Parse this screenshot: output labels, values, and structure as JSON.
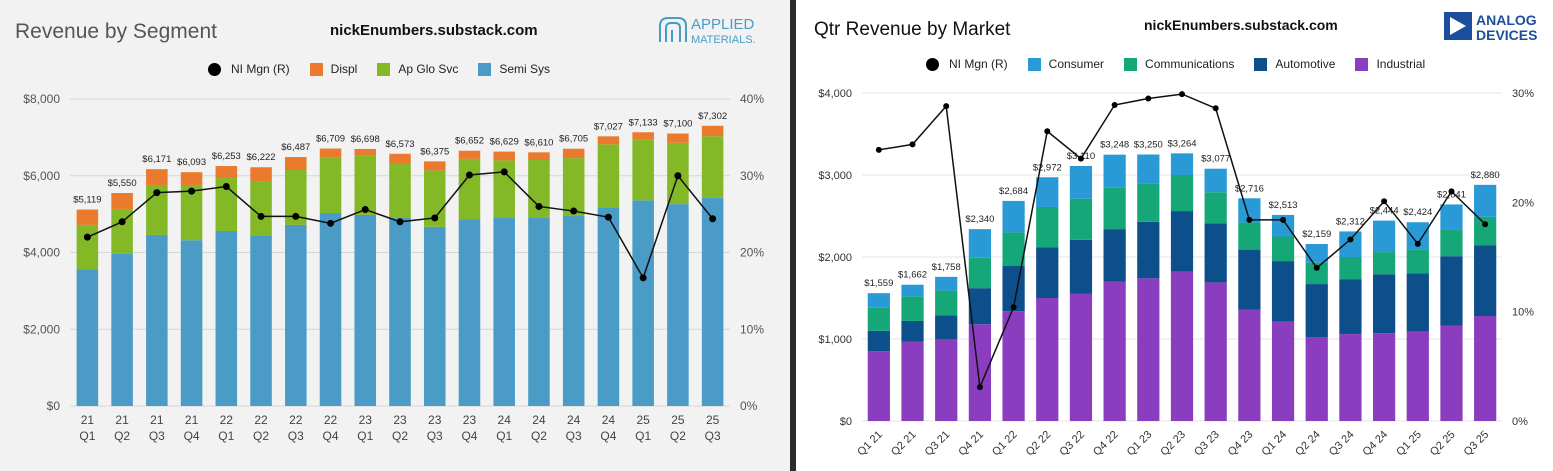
{
  "chart_data": [
    {
      "type": "bar",
      "stacked": true,
      "title": "Revenue by Segment",
      "watermark": "nickEnumbers.substack.com",
      "logo_text": [
        "APPLIED",
        "MATERIALS."
      ],
      "legend_placement": "top",
      "categories": [
        [
          "21",
          "Q1"
        ],
        [
          "21",
          "Q2"
        ],
        [
          "21",
          "Q3"
        ],
        [
          "21",
          "Q4"
        ],
        [
          "22",
          "Q1"
        ],
        [
          "22",
          "Q2"
        ],
        [
          "22",
          "Q3"
        ],
        [
          "22",
          "Q4"
        ],
        [
          "23",
          "Q1"
        ],
        [
          "23",
          "Q2"
        ],
        [
          "23",
          "Q3"
        ],
        [
          "23",
          "Q4"
        ],
        [
          "24",
          "Q1"
        ],
        [
          "24",
          "Q2"
        ],
        [
          "24",
          "Q3"
        ],
        [
          "24",
          "Q4"
        ],
        [
          "25",
          "Q1"
        ],
        [
          "25",
          "Q2"
        ],
        [
          "25",
          "Q3"
        ]
      ],
      "series": [
        {
          "name": "Semi Sys",
          "color": "#4a9cc7",
          "values": [
            3560,
            3970,
            4460,
            4320,
            4560,
            4450,
            4720,
            5030,
            4980,
            4900,
            4670,
            4870,
            4910,
            4910,
            4950,
            5170,
            5360,
            5260,
            5430
          ]
        },
        {
          "name": "Ap Glo Svc",
          "color": "#83b827",
          "values": [
            1160,
            1140,
            1300,
            1440,
            1380,
            1390,
            1430,
            1440,
            1540,
            1420,
            1470,
            1570,
            1490,
            1500,
            1510,
            1650,
            1580,
            1600,
            1600
          ]
        },
        {
          "name": "Displ",
          "color": "#ea7a2e",
          "values": [
            399,
            440,
            411,
            333,
            313,
            382,
            337,
            239,
            178,
            253,
            235,
            212,
            229,
            200,
            245,
            207,
            193,
            240,
            272
          ]
        }
      ],
      "totals": [
        "$5,119",
        "$5,550",
        "$6,171",
        "$6,093",
        "$6,253",
        "$6,222",
        "$6,487",
        "$6,709",
        "$6,698",
        "$6,573",
        "$6,375",
        "$6,652",
        "$6,629",
        "$6,610",
        "$6,705",
        "$7,027",
        "$7,133",
        "$7,100",
        "$7,302"
      ],
      "line": {
        "name": "NI Mgn (R)",
        "axis": "right",
        "values": [
          22.0,
          24.0,
          27.8,
          28.0,
          28.6,
          24.7,
          24.7,
          23.8,
          25.6,
          24.0,
          24.5,
          30.1,
          30.5,
          26.0,
          25.4,
          24.6,
          16.7,
          30.0,
          24.4
        ]
      },
      "ylim": [
        0,
        8000
      ],
      "yticks": [
        "$0",
        "$2,000",
        "$4,000",
        "$6,000",
        "$8,000"
      ],
      "y2lim": [
        0,
        40
      ],
      "y2ticks": [
        "0%",
        "10%",
        "20%",
        "30%",
        "40%"
      ],
      "grid": true
    },
    {
      "type": "bar",
      "stacked": true,
      "title": "Qtr Revenue by Market",
      "watermark": "nickEnumbers.substack.com",
      "logo_text": [
        "ANALOG",
        "DEVICES"
      ],
      "legend_placement": "top",
      "categories": [
        "Q1 21",
        "Q2 21",
        "Q3 21",
        "Q4 21",
        "Q1 22",
        "Q2 22",
        "Q3 22",
        "Q4 22",
        "Q1 23",
        "Q2 23",
        "Q3 23",
        "Q4 23",
        "Q1 24",
        "Q2 24",
        "Q3 24",
        "Q4 24",
        "Q1 25",
        "Q2 25",
        "Q3 25"
      ],
      "series": [
        {
          "name": "Industrial",
          "color": "#8a3ebf",
          "values": [
            850,
            970,
            1000,
            1180,
            1340,
            1500,
            1550,
            1700,
            1740,
            1820,
            1690,
            1360,
            1210,
            1020,
            1060,
            1070,
            1090,
            1160,
            1280
          ]
        },
        {
          "name": "Automotive",
          "color": "#0d4f8b",
          "values": [
            250,
            250,
            290,
            440,
            550,
            620,
            660,
            640,
            690,
            740,
            720,
            730,
            740,
            650,
            670,
            720,
            710,
            850,
            860
          ]
        },
        {
          "name": "Communications",
          "color": "#16a779",
          "values": [
            280,
            300,
            300,
            370,
            410,
            490,
            500,
            510,
            470,
            440,
            380,
            330,
            300,
            260,
            270,
            270,
            290,
            320,
            350
          ]
        },
        {
          "name": "Consumer",
          "color": "#2a9ad6",
          "values": [
            179,
            142,
            168,
            350,
            384,
            362,
            400,
            398,
            350,
            264,
            287,
            296,
            263,
            229,
            312,
            384,
            334,
            311,
            390
          ]
        }
      ],
      "totals": [
        "$1,559",
        "$1,662",
        "$1,758",
        "$2,340",
        "$2,684",
        "$2,972",
        "$3,110",
        "$3,248",
        "$3,250",
        "$3,264",
        "$3,077",
        "$2,716",
        "$2,513",
        "$2,159",
        "$2,312",
        "$2,444",
        "$2,424",
        "$2,641",
        "$2,880"
      ],
      "line": {
        "name": "NI Mgn (R)",
        "axis": "right",
        "values": [
          24.8,
          25.3,
          28.8,
          3.1,
          10.4,
          26.5,
          24.0,
          28.9,
          29.5,
          29.9,
          28.6,
          18.4,
          18.4,
          14.0,
          16.6,
          20.1,
          16.2,
          21.0,
          18.0
        ]
      },
      "ylim": [
        0,
        4000
      ],
      "yticks": [
        "$0",
        "$1,000",
        "$2,000",
        "$3,000",
        "$4,000"
      ],
      "y2lim": [
        0,
        30
      ],
      "y2ticks": [
        "0%",
        "10%",
        "20%",
        "30%"
      ],
      "grid": true
    }
  ],
  "legends": {
    "amat": [
      {
        "label": "NI Mgn (R)",
        "kind": "dot",
        "color": "#000000"
      },
      {
        "label": "Displ",
        "kind": "box",
        "color": "#ea7a2e"
      },
      {
        "label": "Ap Glo Svc",
        "kind": "box",
        "color": "#83b827"
      },
      {
        "label": "Semi Sys",
        "kind": "box",
        "color": "#4a9cc7"
      }
    ],
    "adi": [
      {
        "label": "NI Mgn (R)",
        "kind": "dot",
        "color": "#000000"
      },
      {
        "label": "Consumer",
        "kind": "box",
        "color": "#2a9ad6"
      },
      {
        "label": "Communications",
        "kind": "box",
        "color": "#16a779"
      },
      {
        "label": "Automotive",
        "kind": "box",
        "color": "#0d4f8b"
      },
      {
        "label": "Industrial",
        "kind": "box",
        "color": "#8a3ebf"
      }
    ]
  }
}
